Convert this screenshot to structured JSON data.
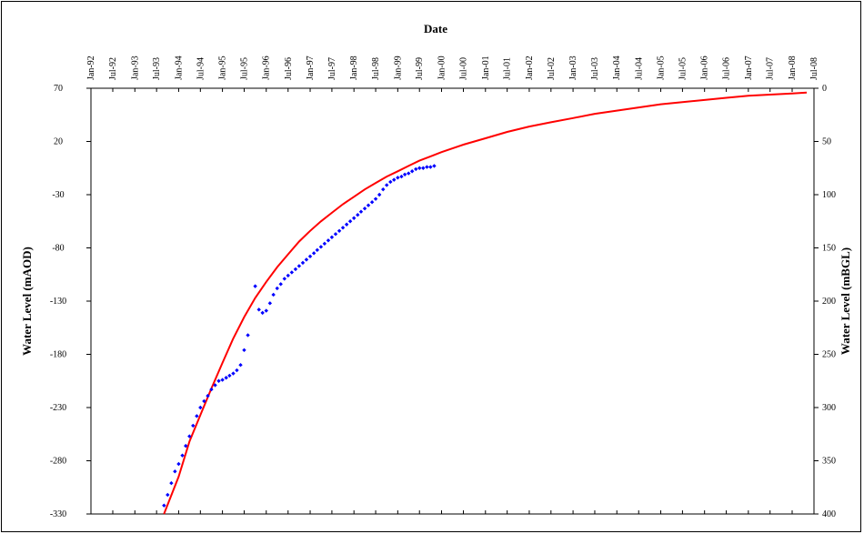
{
  "chart_data": {
    "type": "line",
    "title": "Date",
    "ylabel_left": "Water Level (mAOD)",
    "ylabel_right": "Water Level (mBGL)",
    "x_range": [
      "1992-01-01",
      "2008-07-01"
    ],
    "x_ticks": [
      "Jan-92",
      "Jul-92",
      "Jan-93",
      "Jul-93",
      "Jan-94",
      "Jul-94",
      "Jan-95",
      "Jul-95",
      "Jan-96",
      "Jul-96",
      "Jan-97",
      "Jul-97",
      "Jan-98",
      "Jul-98",
      "Jan-99",
      "Jul-99",
      "Jan-00",
      "Jul-00",
      "Jan-01",
      "Jul-01",
      "Jan-02",
      "Jul-02",
      "Jan-03",
      "Jul-03",
      "Jan-04",
      "Jul-04",
      "Jan-05",
      "Jul-05",
      "Jan-06",
      "Jul-06",
      "Jan-07",
      "Jul-07",
      "Jan-08",
      "Jul-08"
    ],
    "ylim_left": [
      -330,
      70
    ],
    "yticks_left": [
      70,
      20,
      -30,
      -80,
      -130,
      -180,
      -230,
      -280,
      -330
    ],
    "ylim_right": [
      0,
      400
    ],
    "yticks_right": [
      0,
      50,
      100,
      150,
      200,
      250,
      300,
      350,
      400
    ],
    "series": [
      {
        "color": "#ff0000",
        "style": "line",
        "x": [
          "1993-09-01",
          "1994-01-01",
          "1994-04-01",
          "1994-07-01",
          "1994-10-01",
          "1995-01-01",
          "1995-04-01",
          "1995-07-01",
          "1995-10-01",
          "1996-01-01",
          "1996-04-01",
          "1996-07-01",
          "1996-10-01",
          "1997-01-01",
          "1997-04-01",
          "1997-07-01",
          "1997-10-01",
          "1998-01-01",
          "1998-04-01",
          "1998-07-01",
          "1998-10-01",
          "1999-01-01",
          "1999-04-01",
          "1999-07-01",
          "1999-10-01",
          "2000-01-01",
          "2000-07-01",
          "2001-01-01",
          "2001-07-01",
          "2002-01-01",
          "2002-07-01",
          "2003-01-01",
          "2003-07-01",
          "2004-01-01",
          "2004-07-01",
          "2005-01-01",
          "2005-07-01",
          "2006-01-01",
          "2006-07-01",
          "2007-01-01",
          "2007-07-01",
          "2008-01-01",
          "2008-05-01"
        ],
        "y": [
          -330,
          -295,
          -262,
          -237,
          -212,
          -188,
          -165,
          -145,
          -127,
          -112,
          -98,
          -86,
          -74,
          -64,
          -55,
          -47,
          -39,
          -32,
          -25,
          -19,
          -13,
          -8,
          -3,
          2,
          6,
          10,
          17,
          23,
          29,
          34,
          38,
          42,
          46,
          49,
          52,
          55,
          57,
          59,
          61,
          63,
          64,
          65,
          66
        ]
      },
      {
        "color": "#0000ff",
        "style": "markers",
        "x": [
          "1993-09-01",
          "1993-10-01",
          "1993-11-01",
          "1993-12-01",
          "1994-01-01",
          "1994-02-01",
          "1994-03-01",
          "1994-04-01",
          "1994-05-01",
          "1994-06-01",
          "1994-07-01",
          "1994-08-01",
          "1994-09-01",
          "1994-10-01",
          "1994-11-01",
          "1994-12-01",
          "1995-01-01",
          "1995-02-01",
          "1995-03-01",
          "1995-04-01",
          "1995-05-01",
          "1995-06-01",
          "1995-07-01",
          "1995-08-01",
          "1995-10-01",
          "1995-11-01",
          "1995-12-01",
          "1996-01-01",
          "1996-02-01",
          "1996-03-01",
          "1996-04-01",
          "1996-05-01",
          "1996-06-01",
          "1996-07-01",
          "1996-08-01",
          "1996-09-01",
          "1996-10-01",
          "1996-11-01",
          "1996-12-01",
          "1997-01-01",
          "1997-02-01",
          "1997-03-01",
          "1997-04-01",
          "1997-05-01",
          "1997-06-01",
          "1997-07-01",
          "1997-08-01",
          "1997-09-01",
          "1997-10-01",
          "1997-11-01",
          "1997-12-01",
          "1998-01-01",
          "1998-02-01",
          "1998-03-01",
          "1998-04-01",
          "1998-05-01",
          "1998-06-01",
          "1998-07-01",
          "1998-08-01",
          "1998-09-01",
          "1998-10-01",
          "1998-11-01",
          "1998-12-01",
          "1999-01-01",
          "1999-02-01",
          "1999-03-01",
          "1999-04-01",
          "1999-05-01",
          "1999-06-01",
          "1999-07-01",
          "1999-08-01",
          "1999-09-01",
          "1999-10-01",
          "1999-11-01"
        ],
        "y": [
          -322,
          -312,
          -301,
          -290,
          -283,
          -275,
          -266,
          -257,
          -247,
          -238,
          -230,
          -224,
          -219,
          -213,
          -209,
          -205,
          -204,
          -202,
          -200,
          -198,
          -195,
          -190,
          -176,
          -162,
          -116,
          -138,
          -141,
          -139,
          -132,
          -124,
          -118,
          -114,
          -109,
          -106,
          -103,
          -100,
          -97,
          -94,
          -91,
          -88,
          -85,
          -82,
          -79,
          -76,
          -73,
          -70,
          -67,
          -64,
          -61,
          -58,
          -55,
          -52,
          -49,
          -46,
          -43,
          -40,
          -37,
          -34,
          -30,
          -25,
          -21,
          -18,
          -16,
          -14,
          -13,
          -11,
          -10,
          -8,
          -6,
          -5,
          -5,
          -4,
          -4,
          -3
        ]
      }
    ],
    "grid": false,
    "legend": "none"
  }
}
